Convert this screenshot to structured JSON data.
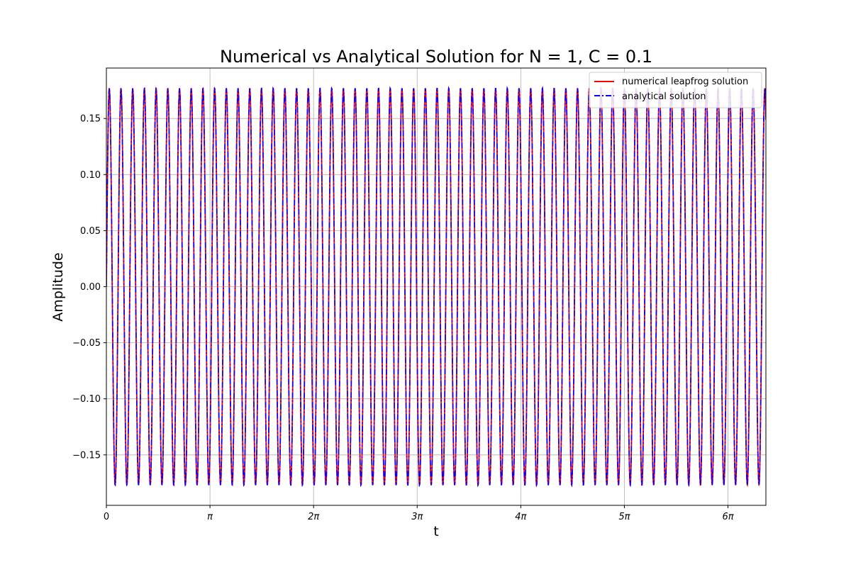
{
  "chart_data": {
    "type": "line",
    "title": "Numerical vs Analytical Solution for N = 1, C = 0.1",
    "xlabel": "t",
    "ylabel": "Amplitude",
    "xlim": [
      0,
      20.0
    ],
    "ylim": [
      -0.195,
      0.195
    ],
    "x_ticks": [
      {
        "value": 0,
        "label": "0"
      },
      {
        "value": 3.14159,
        "label": "π"
      },
      {
        "value": 6.28319,
        "label": "2π"
      },
      {
        "value": 9.42478,
        "label": "3π"
      },
      {
        "value": 12.56637,
        "label": "4π"
      },
      {
        "value": 15.70796,
        "label": "5π"
      },
      {
        "value": 18.84956,
        "label": "6π"
      }
    ],
    "y_ticks": [
      {
        "value": 0.15,
        "label": "0.15"
      },
      {
        "value": 0.1,
        "label": "0.10"
      },
      {
        "value": 0.05,
        "label": "0.05"
      },
      {
        "value": 0.0,
        "label": "0.00"
      },
      {
        "value": -0.05,
        "label": "−0.05"
      },
      {
        "value": -0.1,
        "label": "−0.10"
      },
      {
        "value": -0.15,
        "label": "−0.15"
      }
    ],
    "grid": true,
    "legend_position": "top-right",
    "series": [
      {
        "name": "numerical leapfrog solution",
        "color": "#ff0000",
        "style": "solid",
        "function": "sine",
        "amplitude": 0.177,
        "angular_frequency": 17.7
      },
      {
        "name": "analytical solution",
        "color": "#0000ff",
        "style": "dashdot",
        "function": "sine",
        "amplitude": 0.177,
        "angular_frequency": 17.7
      }
    ]
  }
}
